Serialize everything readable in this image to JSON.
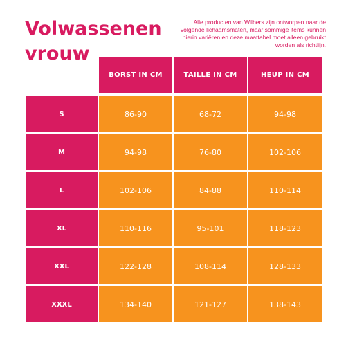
{
  "title": {
    "line1": "Volwassenen",
    "line2": "vrouw"
  },
  "note": "Alle producten van Wilbers zijn ontworpen naar de volgende lichaamsmaten, maar sommige items kunnen hierin variëren en deze maattabel moet alleen gebruikt worden als richtlijn.",
  "colors": {
    "magenta": "#d81b60",
    "orange": "#f7931e"
  },
  "table": {
    "headers": [
      "BORST IN CM",
      "TAILLE IN CM",
      "HEUP IN CM"
    ],
    "rows": [
      {
        "size": "S",
        "values": [
          "86-90",
          "68-72",
          "94-98"
        ]
      },
      {
        "size": "M",
        "values": [
          "94-98",
          "76-80",
          "102-106"
        ]
      },
      {
        "size": "L",
        "values": [
          "102-106",
          "84-88",
          "110-114"
        ]
      },
      {
        "size": "XL",
        "values": [
          "110-116",
          "95-101",
          "118-123"
        ]
      },
      {
        "size": "XXL",
        "values": [
          "122-128",
          "108-114",
          "128-133"
        ]
      },
      {
        "size": "XXXL",
        "values": [
          "134-140",
          "121-127",
          "138-143"
        ]
      }
    ]
  }
}
